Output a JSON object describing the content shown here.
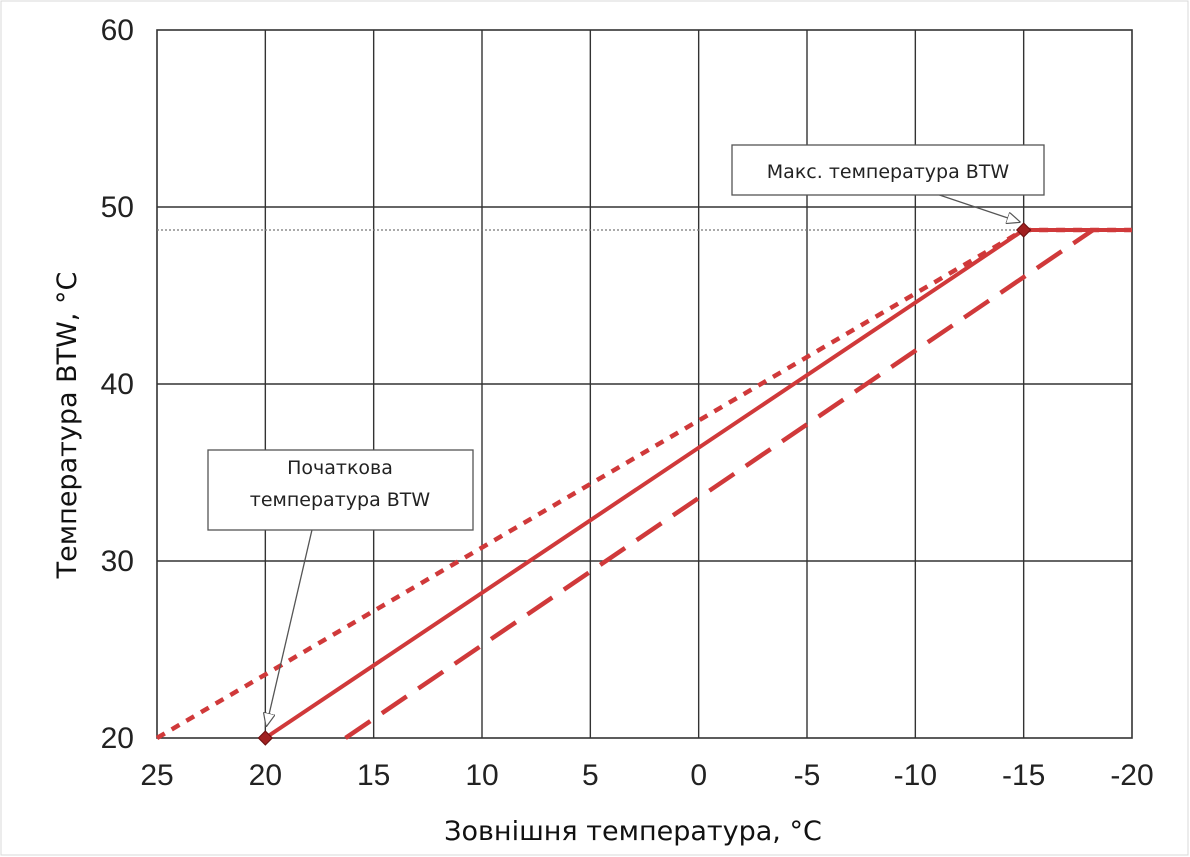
{
  "chart_data": {
    "type": "line",
    "title": "",
    "xlabel": "Зовнішня температура, °C",
    "ylabel": "Температура BTW, °C",
    "xlim": [
      25,
      -20
    ],
    "ylim": [
      20,
      60
    ],
    "x_ticks": [
      "25",
      "20",
      "15",
      "10",
      "5",
      "0",
      "-5",
      "-10",
      "-15",
      "-20"
    ],
    "y_ticks": [
      "20",
      "30",
      "40",
      "50",
      "60"
    ],
    "grid": true,
    "reference_line": {
      "y": 48.7
    },
    "series": [
      {
        "style": "dotted",
        "color": "#d0393a",
        "x": [
          25,
          -15,
          -20
        ],
        "y": [
          20,
          48.7,
          48.7
        ]
      },
      {
        "style": "solid",
        "color": "#d0393a",
        "x": [
          20,
          -15,
          -20
        ],
        "y": [
          20,
          48.7,
          48.7
        ]
      },
      {
        "style": "dashed",
        "color": "#d0393a",
        "x": [
          16.3,
          -18.2
        ],
        "y": [
          20,
          48.7
        ]
      }
    ],
    "markers": [
      {
        "x": 20,
        "y": 20,
        "color": "#a02020"
      },
      {
        "x": -15,
        "y": 48.7,
        "color": "#a02020"
      }
    ],
    "annotations": [
      {
        "lines": [
          "Макс. температура BTW"
        ],
        "point_x": -15,
        "point_y": 48.7
      },
      {
        "lines": [
          "Початкова",
          "температура BTW"
        ],
        "point_x": 20,
        "point_y": 20
      }
    ]
  }
}
